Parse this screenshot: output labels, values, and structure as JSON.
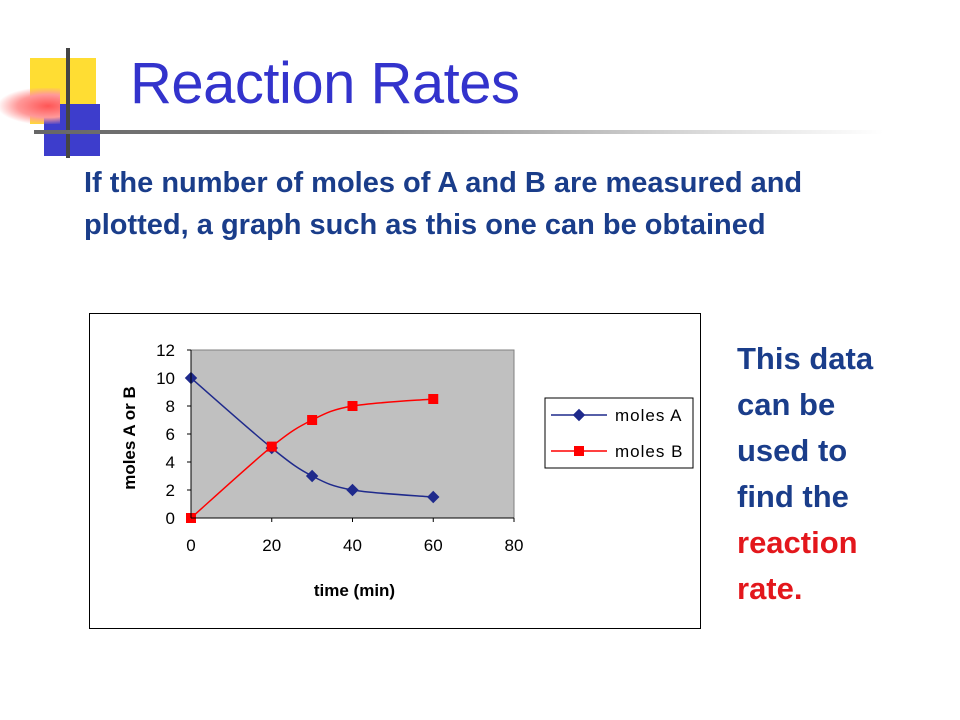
{
  "slide": {
    "title": "Reaction Rates",
    "intro": "If the number of moles of A and B are measured and plotted, a graph such as this one can be obtained",
    "side_note": {
      "lines": [
        "This data",
        "can be",
        "used to",
        "find the"
      ],
      "highlight_lines": [
        "reaction",
        "rate."
      ],
      "highlight_color": "#e3171c"
    }
  },
  "colors": {
    "title": "#3333cc",
    "text": "#1a3d8a",
    "plot_bg": "#c0c0c0",
    "series_a": "#1f2a8c",
    "series_b": "#ff0000"
  },
  "chart_data": {
    "type": "line",
    "xlabel": "time (min)",
    "ylabel": "moles A or B",
    "xlim": [
      0,
      80
    ],
    "ylim": [
      0,
      12
    ],
    "xticks": [
      0,
      20,
      40,
      60,
      80
    ],
    "yticks": [
      0,
      2,
      4,
      6,
      8,
      10,
      12
    ],
    "grid": false,
    "legend": "right",
    "series": [
      {
        "name": "moles A",
        "marker": "diamond",
        "color": "#1f2a8c",
        "x": [
          0,
          20,
          30,
          40,
          60
        ],
        "y": [
          10,
          5,
          3,
          2,
          1.5
        ]
      },
      {
        "name": "moles B",
        "marker": "square",
        "color": "#ff0000",
        "x": [
          0,
          20,
          30,
          40,
          60
        ],
        "y": [
          0,
          5.1,
          7,
          8,
          8.5
        ]
      }
    ]
  }
}
